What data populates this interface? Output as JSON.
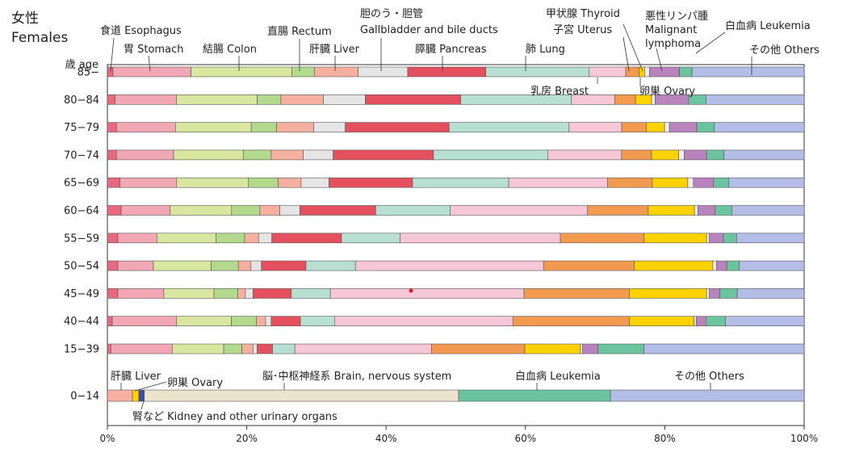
{
  "chart_data": {
    "type": "stacked-bar-horizontal",
    "title_ja": "女性",
    "title_en": "Females",
    "age_axis_label": "歳 age",
    "x_range": [
      0,
      100
    ],
    "x_unit": "%",
    "x_ticks": [
      "0%",
      "20%",
      "40%",
      "60%",
      "80%",
      "100%"
    ],
    "sites": [
      {
        "key": "esophagus",
        "label": "食道 Esophagus",
        "color": "#e8697d"
      },
      {
        "key": "stomach",
        "label": "胃 Stomach",
        "color": "#f2a7b5"
      },
      {
        "key": "colon",
        "label": "結腸 Colon",
        "color": "#d9e6a0"
      },
      {
        "key": "rectum",
        "label": "直腸 Rectum",
        "color": "#b2d98c"
      },
      {
        "key": "liver",
        "label": "肝臓 Liver",
        "color": "#f5b0a0"
      },
      {
        "key": "gallbladder",
        "label": "胆のう・胆管 Gallbladder and bile ducts",
        "color": "#e5e5e5"
      },
      {
        "key": "pancreas",
        "label": "膵臓 Pancreas",
        "color": "#e5505f"
      },
      {
        "key": "lung",
        "label": "肺 Lung",
        "color": "#b8e0d2"
      },
      {
        "key": "breast",
        "label": "乳房 Breast",
        "color": "#f6c7d6"
      },
      {
        "key": "uterus",
        "label": "子宮 Uterus",
        "color": "#f29b50"
      },
      {
        "key": "ovary",
        "label": "卵巣 Ovary",
        "color": "#ffd200"
      },
      {
        "key": "thyroid",
        "label": "甲状腺 Thyroid",
        "color": "#eeeeee"
      },
      {
        "key": "lymphoma",
        "label": "悪性リンパ腫 Malignant lymphoma",
        "color": "#b983be"
      },
      {
        "key": "leukemia",
        "label": "白血病 Leukemia",
        "color": "#6cc3a0"
      },
      {
        "key": "others",
        "label": "その他 Others",
        "color": "#b4bde6"
      }
    ],
    "groups": [
      {
        "age": "85−",
        "values": [
          0.8,
          11.2,
          14.5,
          3.2,
          6.3,
          7.1,
          11.2,
          14.8,
          5.3,
          1.9,
          0.8,
          0.7,
          4.3,
          1.8,
          16.1
        ]
      },
      {
        "age": "80−84",
        "values": [
          1.1,
          8.8,
          11.6,
          3.4,
          6.1,
          6.0,
          13.7,
          15.9,
          6.2,
          3.0,
          2.3,
          0.5,
          4.8,
          2.5,
          14.1
        ]
      },
      {
        "age": "75−79",
        "values": [
          1.3,
          8.4,
          10.8,
          3.6,
          5.3,
          4.5,
          14.8,
          17.1,
          7.5,
          3.5,
          2.6,
          0.7,
          3.9,
          2.5,
          12.8
        ]
      },
      {
        "age": "70−74",
        "values": [
          1.3,
          8.2,
          10.0,
          4.0,
          4.6,
          4.3,
          14.4,
          16.4,
          10.6,
          4.3,
          3.9,
          0.8,
          3.2,
          2.5,
          11.5
        ]
      },
      {
        "age": "65−69",
        "values": [
          1.8,
          8.1,
          10.3,
          4.3,
          3.3,
          4.0,
          12.0,
          13.8,
          14.2,
          6.4,
          5.1,
          0.8,
          2.9,
          2.2,
          10.8
        ]
      },
      {
        "age": "60−64",
        "values": [
          2.0,
          7.1,
          8.9,
          4.1,
          2.9,
          2.9,
          11.0,
          10.8,
          19.9,
          8.8,
          6.7,
          0.5,
          2.5,
          2.4,
          10.5
        ]
      },
      {
        "age": "55−59",
        "values": [
          1.5,
          5.6,
          8.5,
          4.1,
          2.0,
          1.9,
          10.0,
          8.4,
          23.0,
          12.0,
          9.0,
          0.4,
          2.0,
          1.9,
          9.7
        ]
      },
      {
        "age": "50−54",
        "values": [
          1.5,
          5.1,
          8.3,
          3.9,
          1.8,
          1.5,
          6.4,
          7.1,
          27.0,
          13.0,
          11.3,
          0.5,
          1.5,
          1.8,
          9.3
        ]
      },
      {
        "age": "45−49",
        "values": [
          1.5,
          6.6,
          7.2,
          3.4,
          1.1,
          1.1,
          5.5,
          5.6,
          27.8,
          15.1,
          11.1,
          0.4,
          1.5,
          2.5,
          9.6
        ]
      },
      {
        "age": "40−44",
        "values": [
          0.7,
          9.2,
          7.9,
          3.6,
          1.3,
          0.8,
          4.2,
          4.9,
          25.6,
          16.7,
          9.3,
          0.3,
          1.4,
          2.8,
          11.3
        ]
      },
      {
        "age": "15−39",
        "values": [
          0.5,
          8.8,
          7.4,
          2.6,
          1.6,
          0.6,
          2.2,
          3.2,
          19.6,
          13.4,
          8.0,
          0.3,
          2.2,
          6.6,
          23.0
        ]
      }
    ],
    "group_0_14": {
      "age": "0−14",
      "segments": [
        {
          "key": "liver",
          "label": "肝臓 Liver",
          "value": 3.6,
          "color": "#f5b0a0"
        },
        {
          "key": "ovary",
          "label": "卵巣 Ovary",
          "value": 0.9,
          "color": "#ffd200"
        },
        {
          "key": "kidney",
          "label": "腎など Kidney and other urinary organs",
          "value": 0.8,
          "color": "#3e4e9e"
        },
        {
          "key": "brain",
          "label": "脳・中枢神経系 Brain, nervous system",
          "value": 45.1,
          "color": "#ece4cc"
        },
        {
          "key": "leukemia",
          "label": "白血病 Leukemia",
          "value": 21.8,
          "color": "#6cc3a0"
        },
        {
          "key": "others",
          "label": "その他 Others",
          "value": 27.8,
          "color": "#b4bde6"
        }
      ]
    },
    "callouts": {
      "esophagus": "食道 Esophagus",
      "stomach": "胃 Stomach",
      "colon": "結腸 Colon",
      "rectum": "直腸 Rectum",
      "liver": "肝臓 Liver",
      "gallbladder_ja": "胆のう・胆管",
      "gallbladder_en": "Gallbladder and bile ducts",
      "pancreas": "膵臓 Pancreas",
      "lung": "肺 Lung",
      "thyroid": "甲状腺 Thyroid",
      "uterus": "子宮 Uterus",
      "lymphoma_1": "悪性リンパ腫",
      "lymphoma_2": "Malignant",
      "lymphoma_3": "lymphoma",
      "leukemia": "白血病 Leukemia",
      "others": "その他 Others",
      "breast": "乳房 Breast",
      "ovary": "卵巣 Ovary",
      "child_liver": "肝臓 Liver",
      "child_ovary": "卵巣 Ovary",
      "child_brain": "脳･中枢神経系 Brain, nervous system",
      "child_leukemia": "白血病 Leukemia",
      "child_others": "その他 Others",
      "child_kidney": "腎など Kidney and other urinary organs"
    }
  }
}
